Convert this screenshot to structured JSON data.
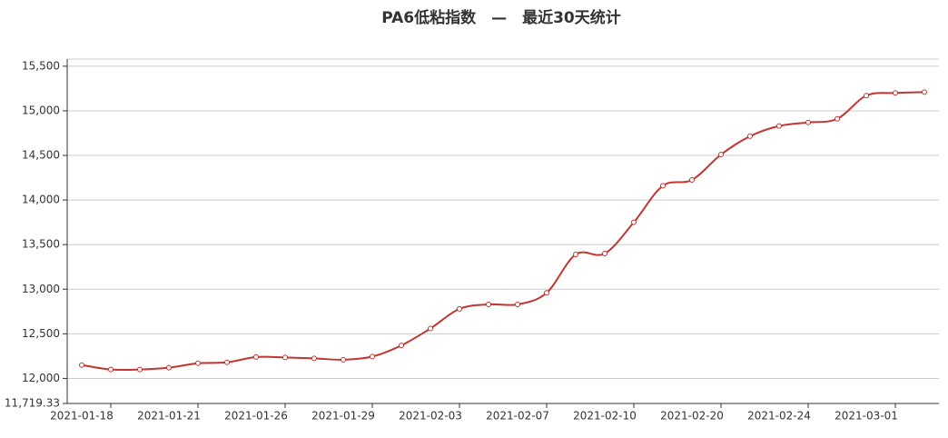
{
  "chart_data": {
    "type": "line",
    "title": "PA6低粘指数　—　最近30天统计",
    "categories": [
      "2021-01-18",
      null,
      null,
      "2021-01-21",
      null,
      null,
      "2021-01-26",
      null,
      null,
      "2021-01-29",
      null,
      null,
      "2021-02-03",
      null,
      null,
      "2021-02-07",
      null,
      null,
      "2021-02-10",
      null,
      null,
      "2021-02-20",
      null,
      null,
      "2021-02-24",
      null,
      null,
      "2021-03-01",
      null,
      null
    ],
    "series": [
      {
        "color": "#c23531",
        "values": [
          12150,
          12100,
          12100,
          12120,
          12170,
          12180,
          12240,
          12235,
          12225,
          12210,
          12245,
          12370,
          12560,
          12780,
          12830,
          12830,
          12960,
          13390,
          13400,
          13750,
          14160,
          14225,
          14510,
          14715,
          14830,
          14870,
          14910,
          15170,
          15200,
          15210
        ]
      }
    ],
    "ylim": [
      11719.33,
      15580
    ],
    "yticks": [
      {
        "value": 11719.33,
        "label": "11,719.33"
      },
      {
        "value": 12000,
        "label": "12,000"
      },
      {
        "value": 12500,
        "label": "12,500"
      },
      {
        "value": 13000,
        "label": "13,000"
      },
      {
        "value": 13500,
        "label": "13,500"
      },
      {
        "value": 14000,
        "label": "14,000"
      },
      {
        "value": 14500,
        "label": "14,500"
      },
      {
        "value": 15000,
        "label": "15,000"
      },
      {
        "value": 15500,
        "label": "15,500"
      }
    ],
    "grid": true,
    "smooth": true
  }
}
